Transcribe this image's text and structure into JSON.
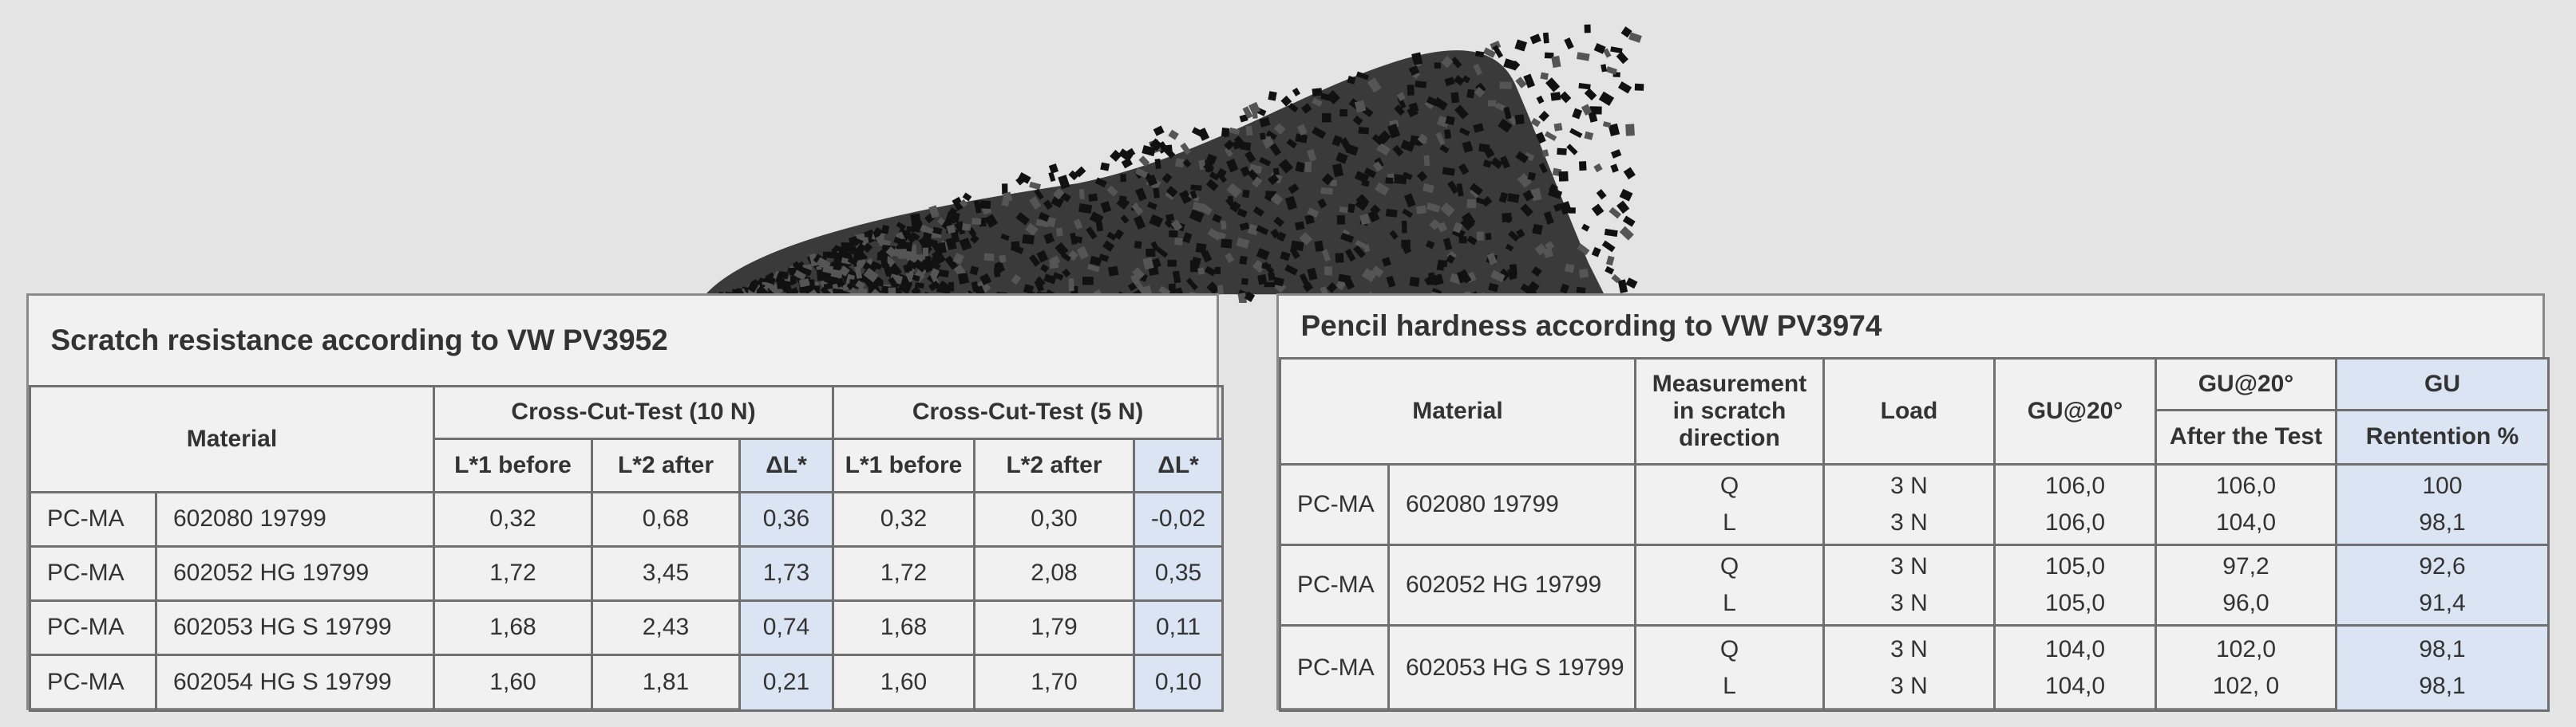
{
  "scratch_table": {
    "title": "Scratch resistance according to VW PV3952",
    "headers": {
      "material": "Material",
      "group_1": "Cross-Cut-Test (10 N)",
      "group_2": "Cross-Cut-Test (5 N)",
      "sub": [
        "L*1 before",
        "L*2 after",
        "ΔL*",
        "L*1 before",
        "L*2 after",
        "ΔL*"
      ]
    },
    "rows": [
      [
        "PC-MA",
        "602080 19799",
        "0,32",
        "0,68",
        "0,36",
        "0,32",
        "0,30",
        "-0,02"
      ],
      [
        "PC-MA",
        "602052 HG 19799",
        "1,72",
        "3,45",
        "1,73",
        "1,72",
        "2,08",
        "0,35"
      ],
      [
        "PC-MA",
        "602053 HG S 19799",
        "1,68",
        "2,43",
        "0,74",
        "1,68",
        "1,79",
        "0,11"
      ],
      [
        "PC-MA",
        "602054 HG S 19799",
        "1,60",
        "1,81",
        "0,21",
        "1,60",
        "1,70",
        "0,10"
      ]
    ]
  },
  "pencil_table": {
    "title": "Pencil hardness according to VW PV3974",
    "headers": {
      "material": "Material",
      "measurement": "Measurement in scratch direction",
      "load": "Load",
      "gu_20": "GU@20°",
      "gu_20_after": "GU@20°",
      "after_test": "After the Test",
      "gu": "GU",
      "retention": "Rentention %"
    },
    "rows": [
      {
        "type": "PC-MA",
        "material": "602080 19799",
        "direction": [
          "Q",
          "L"
        ],
        "load": [
          "3 N",
          "3 N"
        ],
        "gu_20": [
          "106,0",
          "106,0"
        ],
        "after": [
          "106,0",
          "104,0"
        ],
        "retention": [
          "100",
          "98,1"
        ]
      },
      {
        "type": "PC-MA",
        "material": "602052 HG 19799",
        "direction": [
          "Q",
          "L"
        ],
        "load": [
          "3 N",
          "3 N"
        ],
        "gu_20": [
          "105,0",
          "105,0"
        ],
        "after": [
          "97,2",
          "96,0"
        ],
        "retention": [
          "92,6",
          "91,4"
        ]
      },
      {
        "type": "PC-MA",
        "material": "602053 HG S 19799",
        "direction": [
          "Q",
          "L"
        ],
        "load": [
          "3 N",
          "3 N"
        ],
        "gu_20": [
          "104,0",
          "104,0"
        ],
        "after": [
          "102,0",
          "102, 0"
        ],
        "retention": [
          "98,1",
          "98,1"
        ]
      }
    ]
  }
}
